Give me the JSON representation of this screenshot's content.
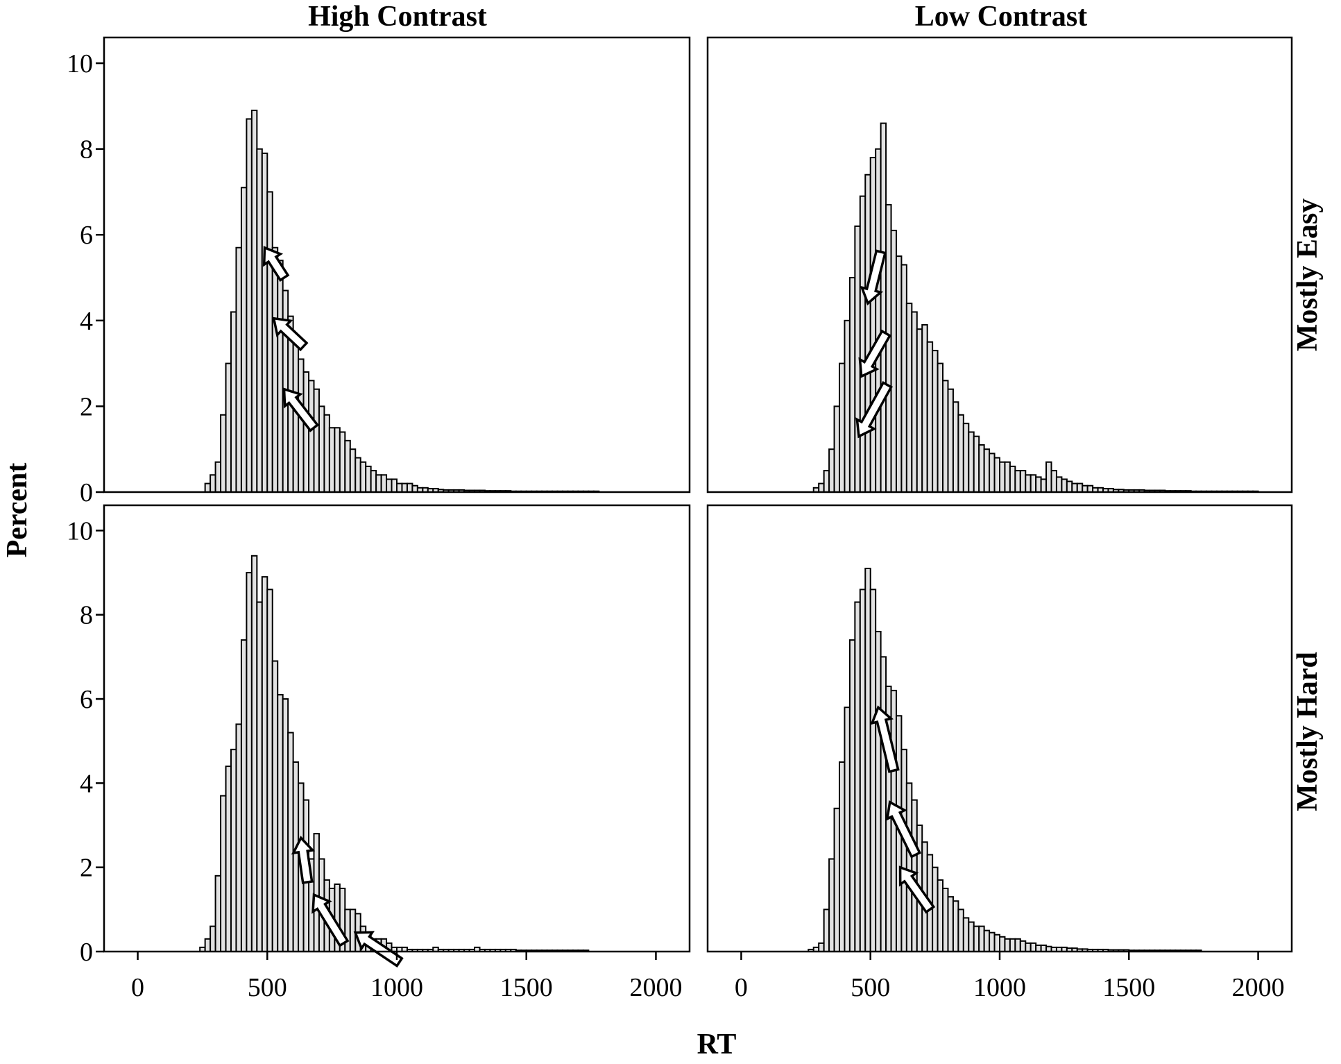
{
  "chart_data": {
    "type": "bar",
    "layout": "2x2 histogram panels, shared axes",
    "column_titles": [
      "High Contrast",
      "Low Contrast"
    ],
    "row_titles": [
      "Mostly Easy",
      "Mostly Hard"
    ],
    "xlabel": "RT",
    "ylabel": "Percent",
    "xlim": [
      -130,
      2130
    ],
    "ylim": [
      0,
      10.6
    ],
    "x_ticks": [
      0,
      500,
      1000,
      1500,
      2000
    ],
    "x_tick_labels": [
      "0",
      "500",
      "1000",
      "1500",
      "2000"
    ],
    "y_ticks": [
      0,
      2,
      4,
      6,
      8,
      10
    ],
    "y_tick_labels": [
      "0",
      "2",
      "4",
      "6",
      "8",
      "10"
    ],
    "bin_width": 20,
    "grid": false,
    "legend": "none",
    "bar_color": "#e2e2e2",
    "panels": [
      {
        "column": "High Contrast",
        "row": "Mostly Easy",
        "bin_start": 260,
        "values": [
          0.2,
          0.4,
          0.7,
          1.8,
          3.0,
          4.2,
          5.7,
          7.1,
          8.7,
          8.9,
          8.0,
          7.9,
          7.0,
          5.7,
          5.4,
          4.7,
          4.1,
          3.6,
          3.1,
          2.8,
          2.6,
          2.4,
          2.0,
          1.8,
          1.5,
          1.5,
          1.4,
          1.2,
          1.0,
          0.8,
          0.7,
          0.6,
          0.5,
          0.4,
          0.4,
          0.3,
          0.3,
          0.2,
          0.2,
          0.2,
          0.15,
          0.1,
          0.1,
          0.08,
          0.08,
          0.06,
          0.05,
          0.05,
          0.05,
          0.05,
          0.04,
          0.04,
          0.04,
          0.04,
          0.03,
          0.03,
          0.03,
          0.03,
          0.03,
          0.02,
          0.02,
          0.02,
          0.02,
          0.02,
          0.02,
          0.02,
          0.02,
          0.02,
          0.02,
          0.02,
          0.02,
          0.02,
          0.02,
          0.02,
          0.02,
          0.02
        ],
        "arrows": [
          {
            "from": [
              565,
              5.0
            ],
            "to": [
              490,
              5.7
            ]
          },
          {
            "from": [
              640,
              3.4
            ],
            "to": [
              525,
              4.05
            ]
          },
          {
            "from": [
              680,
              1.5
            ],
            "to": [
              565,
              2.4
            ]
          }
        ]
      },
      {
        "column": "Low Contrast",
        "row": "Mostly Easy",
        "bin_start": 280,
        "values": [
          0.1,
          0.2,
          0.5,
          1.0,
          2.0,
          3.0,
          4.0,
          5.0,
          6.2,
          6.9,
          7.4,
          7.8,
          8.0,
          8.6,
          6.7,
          6.1,
          5.5,
          5.3,
          4.4,
          4.2,
          3.8,
          3.9,
          3.5,
          3.3,
          3.0,
          2.6,
          2.4,
          2.1,
          1.8,
          1.6,
          1.4,
          1.3,
          1.1,
          1.0,
          0.9,
          0.8,
          0.7,
          0.7,
          0.6,
          0.5,
          0.5,
          0.4,
          0.4,
          0.35,
          0.3,
          0.7,
          0.5,
          0.35,
          0.3,
          0.25,
          0.2,
          0.2,
          0.15,
          0.15,
          0.1,
          0.1,
          0.08,
          0.08,
          0.06,
          0.06,
          0.05,
          0.05,
          0.05,
          0.05,
          0.04,
          0.04,
          0.04,
          0.04,
          0.03,
          0.03,
          0.03,
          0.03,
          0.03,
          0.02,
          0.02,
          0.02,
          0.02,
          0.02,
          0.02,
          0.02,
          0.02,
          0.02,
          0.02,
          0.02,
          0.02,
          0.02
        ],
        "arrows": [
          {
            "from": [
              540,
              5.6
            ],
            "to": [
              490,
              4.4
            ]
          },
          {
            "from": [
              560,
              3.7
            ],
            "to": [
              465,
              2.7
            ]
          },
          {
            "from": [
              565,
              2.5
            ],
            "to": [
              455,
              1.3
            ]
          }
        ]
      },
      {
        "column": "High Contrast",
        "row": "Mostly Hard",
        "bin_start": 240,
        "values": [
          0.1,
          0.3,
          0.6,
          1.8,
          3.7,
          4.4,
          4.8,
          5.4,
          7.4,
          9.0,
          9.4,
          8.3,
          8.9,
          8.6,
          6.9,
          6.1,
          6.0,
          5.2,
          4.5,
          4.0,
          3.6,
          2.2,
          2.8,
          2.2,
          1.7,
          1.5,
          1.6,
          1.5,
          1.0,
          1.0,
          0.9,
          0.6,
          0.4,
          0.3,
          0.3,
          0.3,
          0.2,
          0.1,
          0.1,
          0.1,
          0.05,
          0.05,
          0.05,
          0.05,
          0.05,
          0.1,
          0.05,
          0.05,
          0.05,
          0.05,
          0.05,
          0.05,
          0.05,
          0.1,
          0.05,
          0.05,
          0.05,
          0.05,
          0.05,
          0.05,
          0.05,
          0.03,
          0.03,
          0.03,
          0.03,
          0.03,
          0.03,
          0.03,
          0.03,
          0.03,
          0.03,
          0.03,
          0.03,
          0.03,
          0.03
        ],
        "arrows": [
          {
            "from": [
              655,
              1.65
            ],
            "to": [
              630,
              2.7
            ]
          },
          {
            "from": [
              795,
              0.2
            ],
            "to": [
              680,
              1.35
            ]
          },
          {
            "from": [
              1010,
              -0.25
            ],
            "to": [
              840,
              0.45
            ]
          }
        ]
      },
      {
        "column": "Low Contrast",
        "row": "Mostly Hard",
        "bin_start": 260,
        "values": [
          0.05,
          0.1,
          0.2,
          1.0,
          2.2,
          3.4,
          4.5,
          5.8,
          7.4,
          8.3,
          8.6,
          9.1,
          8.6,
          7.6,
          7.0,
          6.3,
          6.2,
          5.6,
          4.8,
          4.0,
          3.6,
          3.0,
          2.6,
          2.3,
          2.0,
          1.7,
          1.5,
          1.3,
          1.2,
          1.0,
          0.8,
          0.7,
          0.6,
          0.6,
          0.5,
          0.45,
          0.4,
          0.35,
          0.3,
          0.3,
          0.3,
          0.25,
          0.2,
          0.2,
          0.15,
          0.15,
          0.12,
          0.1,
          0.1,
          0.1,
          0.08,
          0.08,
          0.06,
          0.06,
          0.05,
          0.05,
          0.05,
          0.05,
          0.04,
          0.04,
          0.04,
          0.04,
          0.03,
          0.03,
          0.03,
          0.03,
          0.03,
          0.03,
          0.03,
          0.03,
          0.03,
          0.03,
          0.03,
          0.03,
          0.03,
          0.03
        ],
        "arrows": [
          {
            "from": [
              590,
              4.3
            ],
            "to": [
              530,
              5.8
            ]
          },
          {
            "from": [
              675,
              2.3
            ],
            "to": [
              575,
              3.55
            ]
          },
          {
            "from": [
              730,
              1.0
            ],
            "to": [
              615,
              2.0
            ]
          }
        ]
      }
    ]
  }
}
